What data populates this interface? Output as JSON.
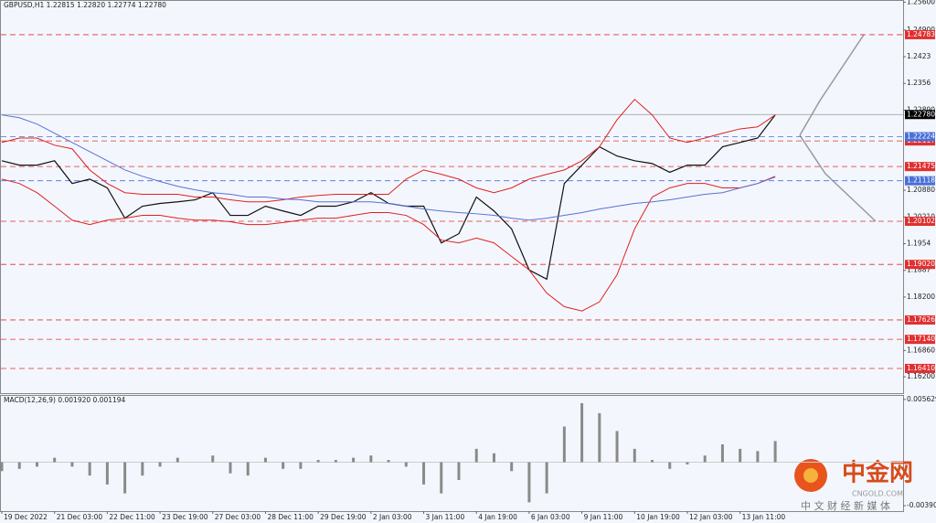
{
  "chart_data": [
    {
      "type": "line",
      "title": "GBPUSD,H1  1.22815 1.22820 1.22774 1.22780",
      "categories": [
        "19 Dec 2022",
        null,
        null,
        "21 Dec 03:00",
        null,
        null,
        "22 Dec 11:00",
        null,
        null,
        "23 Dec 19:00",
        null,
        null,
        "27 Dec 03:00",
        null,
        null,
        "28 Dec 11:00",
        null,
        null,
        "29 Dec 19:00",
        null,
        null,
        "2 Jan 03:00",
        null,
        null,
        "3 Jan 11:00",
        null,
        null,
        "4 Jan 19:00",
        null,
        null,
        "6 Jan 03:00",
        null,
        null,
        "9 Jan 11:00",
        null,
        null,
        "10 Jan 19:00",
        null,
        null,
        "12 Jan 03:00",
        null,
        null,
        "13 Jan 11:00",
        null,
        null
      ],
      "series": [
        {
          "color": "#111111",
          "values": [
            1.2162,
            1.2151,
            1.2151,
            1.2162,
            1.2105,
            1.2116,
            1.2094,
            1.2018,
            1.2048,
            1.2055,
            1.2059,
            1.2064,
            1.2082,
            1.2025,
            1.2025,
            1.2048,
            1.2036,
            1.2025,
            1.2048,
            1.2048,
            1.2059,
            1.2082,
            1.2055,
            1.2048,
            1.2048,
            1.1956,
            1.1979,
            1.2071,
            1.2036,
            1.1991,
            1.1888,
            1.1865,
            1.2105,
            1.2151,
            1.2197,
            1.2174,
            1.2162,
            1.2155,
            1.2133,
            1.2151,
            1.2151,
            1.2197,
            1.2208,
            1.2219,
            1.2277
          ]
        },
        {
          "color": "#e02020",
          "values": [
            1.2208,
            1.2219,
            1.2219,
            1.2201,
            1.2192,
            1.2139,
            1.2105,
            1.2082,
            1.2078,
            1.2078,
            1.2078,
            1.2071,
            1.2071,
            1.2064,
            1.2059,
            1.2059,
            1.2064,
            1.2071,
            1.2075,
            1.2078,
            1.2078,
            1.2078,
            1.2078,
            1.2116,
            1.2139,
            1.2128,
            1.2116,
            1.2094,
            1.2082,
            1.2094,
            1.2116,
            1.2128,
            1.2139,
            1.2162,
            1.2197,
            1.2265,
            1.2316,
            1.2277,
            1.2219,
            1.2208,
            1.2219,
            1.2231,
            1.2242,
            1.2247,
            1.2277
          ]
        },
        {
          "color": "#e02020",
          "values": [
            1.2116,
            1.2105,
            1.2082,
            1.2048,
            1.2013,
            1.2002,
            1.2013,
            1.2018,
            1.2025,
            1.2025,
            1.2018,
            1.2013,
            1.2013,
            1.2009,
            1.2002,
            1.2002,
            1.2007,
            1.2013,
            1.2018,
            1.2018,
            1.2025,
            1.2032,
            1.2032,
            1.2025,
            1.2002,
            1.1963,
            1.1956,
            1.1968,
            1.1956,
            1.1922,
            1.1888,
            1.183,
            1.1796,
            1.1785,
            1.1808,
            1.1876,
            1.1991,
            1.2071,
            1.2094,
            1.2105,
            1.2105,
            1.2094,
            1.2094,
            1.2105,
            1.2123
          ]
        },
        {
          "color": "#5b6fd6",
          "values": [
            1.2277,
            1.227,
            1.2254,
            1.2231,
            1.2208,
            1.2185,
            1.2162,
            1.2139,
            1.2123,
            1.211,
            1.2098,
            1.2089,
            1.2082,
            1.2078,
            1.2071,
            1.2071,
            1.2066,
            1.2064,
            1.2059,
            1.2059,
            1.2059,
            1.2059,
            1.2055,
            1.2048,
            1.2041,
            1.2036,
            1.2032,
            1.2029,
            1.2025,
            1.2018,
            1.2013,
            1.2018,
            1.2025,
            1.2032,
            1.2041,
            1.2048,
            1.2055,
            1.2059,
            1.2064,
            1.2071,
            1.2078,
            1.2082,
            1.2094,
            1.2105,
            1.2121
          ]
        }
      ],
      "levels": [
        {
          "value": 1.24783,
          "color": "#e03030"
        },
        {
          "value": 1.22117,
          "color": "#e03030"
        },
        {
          "value": 1.2278,
          "label": "1.22780",
          "color": "#000000"
        },
        {
          "value": 1.22224,
          "color": "#4a6fd8"
        },
        {
          "value": 1.21475,
          "color": "#e03030"
        },
        {
          "value": 1.21118,
          "color": "#4a6fd8"
        },
        {
          "value": 1.20102,
          "color": "#e03030"
        },
        {
          "value": 1.1902,
          "label": "1.19020",
          "color": "#e03030"
        },
        {
          "value": 1.17626,
          "color": "#e03030"
        },
        {
          "value": 1.1714,
          "label": "1.17140",
          "color": "#e03030"
        },
        {
          "value": 1.1641,
          "label": "1.16410",
          "color": "#e03030"
        }
      ],
      "ylim": [
        1.1579,
        1.2563
      ],
      "yticks": [
        {
          "value": 1.256,
          "label": "1.25600"
        },
        {
          "value": 1.249,
          "label": "1.24900"
        },
        1.2423,
        1.2356,
        {
          "value": 1.2289,
          "label": "1.22890"
        },
        {
          "value": 1.2088,
          "label": "1.20880"
        },
        {
          "value": 1.2021,
          "label": "1.20210"
        },
        1.1954,
        1.1887,
        {
          "value": 1.182,
          "label": "1.18200"
        },
        {
          "value": 1.1686,
          "label": "1.16860"
        },
        {
          "value": 1.162,
          "label": "1.16200"
        }
      ]
    },
    {
      "type": "bar",
      "title": "MACD(12,26,9) 0.001920 0.001194",
      "color": "#8a8a8a",
      "values": [
        -0.0008,
        -0.0006,
        -0.0004,
        0.0004,
        -0.0004,
        -0.0012,
        -0.002,
        -0.0028,
        -0.0012,
        -0.0004,
        0.0004,
        0,
        0.0006,
        -0.001,
        -0.0012,
        0.0004,
        -0.0006,
        -0.0006,
        0.0002,
        0.0002,
        0.0004,
        0.0006,
        0.0002,
        -0.0004,
        -0.002,
        -0.0028,
        -0.0016,
        0.0012,
        0.0008,
        -0.0008,
        -0.0036,
        -0.0028,
        0.0032,
        0.0053,
        0.0044,
        0.0028,
        0.0012,
        0.0002,
        -0.0006,
        -0.0002,
        0.0006,
        0.0016,
        0.0012,
        0.001,
        0.0019
      ],
      "ylim": [
        -0.00439,
        0.00595
      ],
      "yticks": [
        0.005629,
        -0.003905
      ]
    }
  ],
  "watermark": {
    "brand": "中金网",
    "site": "CNGOLD.COM",
    "slogan": "中 文 财 经 新 媒 体"
  }
}
